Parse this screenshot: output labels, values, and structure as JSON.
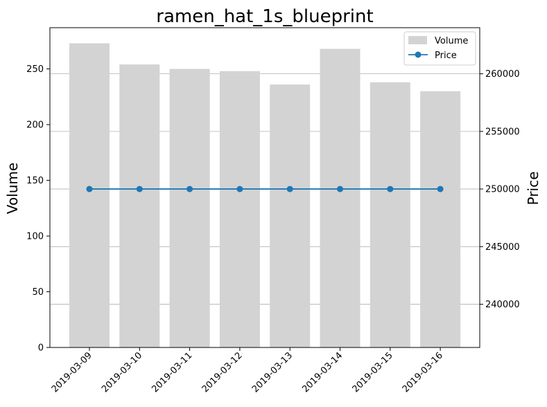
{
  "chart_data": {
    "type": "bar",
    "title": "ramen_hat_1s_blueprint",
    "categories": [
      "2019-03-09",
      "2019-03-10",
      "2019-03-11",
      "2019-03-12",
      "2019-03-13",
      "2019-03-14",
      "2019-03-15",
      "2019-03-16"
    ],
    "series": [
      {
        "name": "Volume",
        "type": "bar",
        "axis": "left",
        "color": "#d3d3d3",
        "values": [
          273,
          254,
          250,
          248,
          236,
          268,
          238,
          230
        ]
      },
      {
        "name": "Price",
        "type": "line",
        "axis": "right",
        "color": "#1f77b4",
        "marker": "circle",
        "values": [
          250000,
          250000,
          250000,
          250000,
          250000,
          250000,
          250000,
          250000
        ]
      }
    ],
    "ylabel": "Volume",
    "y2label": "Price",
    "ylim": [
      0,
      287
    ],
    "y2lim": [
      236250,
      264000
    ],
    "yticks": [
      0,
      50,
      100,
      150,
      200,
      250
    ],
    "y2ticks": [
      240000,
      245000,
      250000,
      255000,
      260000
    ],
    "grid": "horizontal (right axis)",
    "legend_position": "top-right"
  }
}
